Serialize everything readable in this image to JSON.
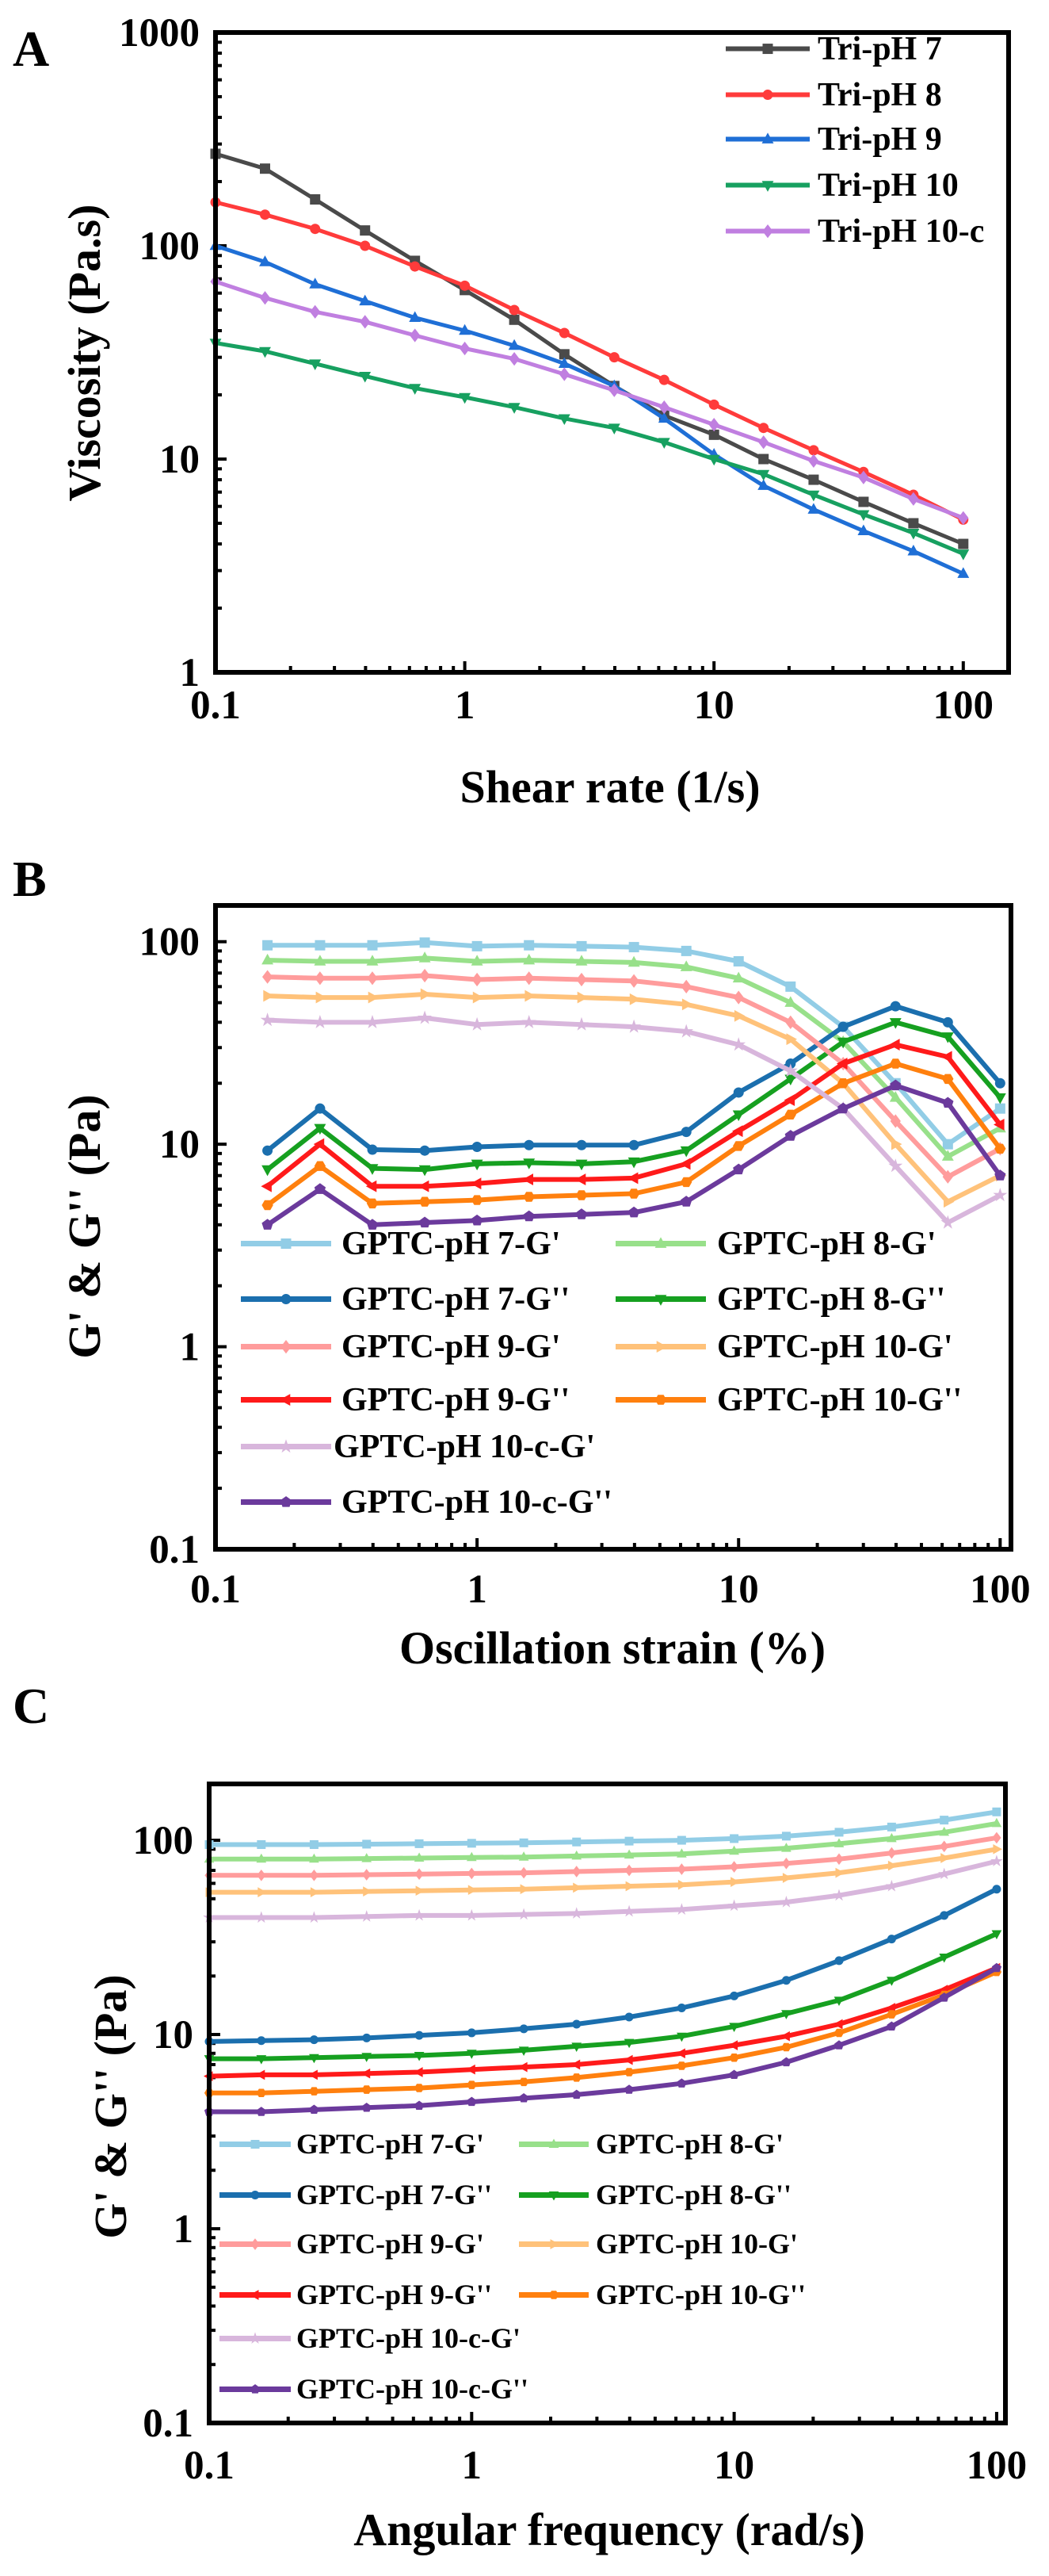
{
  "chart_data": [
    {
      "panel": "A",
      "type": "line",
      "xscale": "log",
      "yscale": "log",
      "xlabel": "Shear rate (1/s)",
      "ylabel": "Viscosity (Pa.s)",
      "xlim": [
        0.1,
        152
      ],
      "ylim": [
        1,
        1000
      ],
      "xticks": [
        {
          "v": 0.1,
          "label": "0.1"
        },
        {
          "v": 1,
          "label": "1"
        },
        {
          "v": 10,
          "label": "10"
        },
        {
          "v": 100,
          "label": "100"
        }
      ],
      "yticks": [
        {
          "v": 1,
          "label": "1"
        },
        {
          "v": 10,
          "label": "10"
        },
        {
          "v": 100,
          "label": "100"
        },
        {
          "v": 1000,
          "label": "1000"
        }
      ],
      "legend_placement": "top-right",
      "grid": false,
      "x": [
        0.1,
        0.158,
        0.251,
        0.398,
        0.631,
        1,
        1.58,
        2.51,
        3.98,
        6.31,
        10,
        15.8,
        25.1,
        39.8,
        63.1,
        100
      ],
      "series": [
        {
          "name": "Tri-pH 7",
          "color": "#4a4a4a",
          "marker": "square",
          "values": [
            270,
            230,
            165,
            118,
            85,
            62,
            45,
            31,
            22,
            16,
            13,
            10,
            8,
            6.3,
            5,
            4
          ]
        },
        {
          "name": "Tri-pH 8",
          "color": "#ff3b3b",
          "marker": "circle",
          "values": [
            160,
            140,
            120,
            100,
            80,
            65,
            50,
            39,
            30,
            23.5,
            18,
            14,
            11,
            8.7,
            6.8,
            5.2
          ]
        },
        {
          "name": "Tri-pH 9",
          "color": "#1f6fd6",
          "marker": "triangle-up",
          "values": [
            100,
            84,
            66,
            55,
            46,
            40,
            34,
            28,
            22,
            15.5,
            10.5,
            7.5,
            5.8,
            4.6,
            3.7,
            2.9
          ]
        },
        {
          "name": "Tri-pH 10",
          "color": "#17a060",
          "marker": "triangle-down",
          "values": [
            35,
            32,
            28,
            24.5,
            21.5,
            19.5,
            17.5,
            15.5,
            14,
            12,
            10,
            8.5,
            6.8,
            5.5,
            4.5,
            3.6
          ]
        },
        {
          "name": "Tri-pH 10-c",
          "color": "#c07fe0",
          "marker": "diamond",
          "values": [
            68,
            57,
            49,
            44,
            38,
            33,
            29.5,
            25,
            21,
            17.5,
            14.5,
            12,
            9.8,
            8.2,
            6.5,
            5.3
          ]
        }
      ]
    },
    {
      "panel": "B",
      "type": "line",
      "xscale": "log",
      "yscale": "log",
      "xlabel": "Oscillation strain (%)",
      "ylabel": "G' & G'' (Pa)",
      "xlim": [
        0.1,
        110
      ],
      "ylim": [
        0.1,
        151
      ],
      "xticks": [
        {
          "v": 0.1,
          "label": "0.1"
        },
        {
          "v": 1,
          "label": "1"
        },
        {
          "v": 10,
          "label": "10"
        },
        {
          "v": 100,
          "label": "100"
        }
      ],
      "yticks": [
        {
          "v": 0.1,
          "label": "0.1"
        },
        {
          "v": 1,
          "label": "1"
        },
        {
          "v": 10,
          "label": "10"
        },
        {
          "v": 100,
          "label": "100"
        }
      ],
      "legend_placement": "bottom-left",
      "grid": false,
      "x": [
        0.158,
        0.251,
        0.398,
        0.631,
        1,
        1.58,
        2.51,
        3.98,
        6.31,
        10,
        15.8,
        25.1,
        39.8,
        63.1,
        100
      ],
      "series": [
        {
          "name": "GPTC-pH 7-G'",
          "color": "#92cde6",
          "marker": "square",
          "values": [
            96,
            96,
            96,
            99,
            95,
            96,
            95,
            94,
            90,
            80,
            60,
            38,
            20,
            10,
            15
          ]
        },
        {
          "name": "GPTC-pH 8-G'",
          "color": "#98e08a",
          "marker": "triangle-up",
          "values": [
            81,
            80,
            80,
            83,
            80,
            81,
            80,
            79,
            75,
            66,
            50,
            32,
            17,
            8.7,
            12
          ]
        },
        {
          "name": "GPTC-pH 7-G''",
          "color": "#1b6fae",
          "marker": "circle",
          "values": [
            9.3,
            15,
            9.4,
            9.3,
            9.7,
            9.9,
            9.9,
            9.9,
            11.5,
            18,
            25,
            38,
            48,
            40,
            20
          ]
        },
        {
          "name": "GPTC-pH 8-G''",
          "color": "#16a020",
          "marker": "triangle-down",
          "values": [
            7.5,
            12,
            7.6,
            7.5,
            8,
            8.1,
            8,
            8.2,
            9.3,
            14,
            21,
            32,
            40,
            34,
            17
          ]
        },
        {
          "name": "GPTC-pH 9-G'",
          "color": "#ff9c9c",
          "marker": "diamond",
          "values": [
            67,
            66,
            66,
            68,
            65,
            66,
            65,
            64,
            60,
            53,
            40,
            25,
            13,
            6.9,
            9.5
          ]
        },
        {
          "name": "GPTC-pH 10-G'",
          "color": "#ffc27a",
          "marker": "triangle-right",
          "values": [
            54,
            53,
            53,
            55,
            53,
            54,
            53,
            52,
            49,
            43,
            33,
            20,
            10,
            5.2,
            7
          ]
        },
        {
          "name": "GPTC-pH 9-G''",
          "color": "#ff1a1a",
          "marker": "triangle-left",
          "values": [
            6.2,
            10,
            6.2,
            6.2,
            6.4,
            6.7,
            6.7,
            6.8,
            8,
            11.6,
            16.5,
            25,
            31,
            27,
            12.5
          ]
        },
        {
          "name": "GPTC-pH 10-G''",
          "color": "#ff800e",
          "marker": "hexagon",
          "values": [
            5,
            7.8,
            5.1,
            5.2,
            5.3,
            5.5,
            5.6,
            5.7,
            6.5,
            9.8,
            14,
            20,
            25,
            21,
            9.5
          ]
        },
        {
          "name": "GPTC-pH 10-c-G'",
          "color": "#d8b6dc",
          "marker": "star",
          "values": [
            41,
            40,
            40,
            42,
            39,
            40,
            39,
            38,
            36,
            31,
            23,
            15,
            7.8,
            4.1,
            5.6
          ]
        },
        {
          "name": "GPTC-pH 10-c-G''",
          "color": "#6b3a9c",
          "marker": "pentagon",
          "values": [
            4,
            6,
            4,
            4.1,
            4.2,
            4.4,
            4.5,
            4.6,
            5.2,
            7.5,
            11,
            15,
            19.5,
            16,
            7
          ]
        }
      ]
    },
    {
      "panel": "C",
      "type": "line",
      "xscale": "log",
      "yscale": "log",
      "xlabel": "Angular frequency (rad/s)",
      "ylabel": "G' & G'' (Pa)",
      "xlim": [
        0.1,
        108
      ],
      "ylim": [
        0.1,
        195
      ],
      "xticks": [
        {
          "v": 0.1,
          "label": "0.1"
        },
        {
          "v": 1,
          "label": "1"
        },
        {
          "v": 10,
          "label": "10"
        },
        {
          "v": 100,
          "label": "100"
        }
      ],
      "yticks": [
        {
          "v": 0.1,
          "label": "0.1"
        },
        {
          "v": 1,
          "label": "1"
        },
        {
          "v": 10,
          "label": "10"
        },
        {
          "v": 100,
          "label": "100"
        }
      ],
      "legend_placement": "bottom-left",
      "grid": false,
      "x": [
        0.1,
        0.158,
        0.251,
        0.398,
        0.631,
        1,
        1.58,
        2.51,
        3.98,
        6.31,
        10,
        15.8,
        25.1,
        39.8,
        63.1,
        100
      ],
      "series": [
        {
          "name": "GPTC-pH 7-G'",
          "color": "#92cde6",
          "marker": "square",
          "values": [
            95,
            95,
            95,
            95.5,
            96,
            96.5,
            97,
            98,
            99,
            100,
            102,
            105,
            110,
            117,
            127,
            140
          ]
        },
        {
          "name": "GPTC-pH 8-G'",
          "color": "#98e08a",
          "marker": "triangle-up",
          "values": [
            80,
            80,
            80,
            80.5,
            81,
            81.5,
            82,
            83,
            84,
            85,
            88,
            91,
            96,
            102,
            110,
            122
          ]
        },
        {
          "name": "GPTC-pH 7-G''",
          "color": "#1b6fae",
          "marker": "circle",
          "values": [
            9.2,
            9.3,
            9.4,
            9.6,
            9.9,
            10.2,
            10.7,
            11.3,
            12.3,
            13.7,
            15.8,
            19,
            24,
            31,
            41,
            56
          ]
        },
        {
          "name": "GPTC-pH 8-G''",
          "color": "#16a020",
          "marker": "triangle-down",
          "values": [
            7.5,
            7.5,
            7.6,
            7.7,
            7.8,
            8.0,
            8.3,
            8.7,
            9.1,
            9.8,
            11,
            12.8,
            15,
            19,
            25,
            33
          ]
        },
        {
          "name": "GPTC-pH 9-G'",
          "color": "#ff9c9c",
          "marker": "diamond",
          "values": [
            66,
            66,
            66,
            66.5,
            67,
            67.5,
            68,
            69,
            70,
            71,
            73,
            76,
            80,
            86,
            93,
            103
          ]
        },
        {
          "name": "GPTC-pH 10-G'",
          "color": "#ffc27a",
          "marker": "triangle-right",
          "values": [
            54,
            54,
            54,
            54.5,
            55,
            55.5,
            56,
            57,
            58,
            59,
            61,
            64,
            68,
            74,
            81,
            90
          ]
        },
        {
          "name": "GPTC-pH 9-G''",
          "color": "#ff1a1a",
          "marker": "triangle-left",
          "values": [
            6.1,
            6.2,
            6.2,
            6.3,
            6.4,
            6.6,
            6.8,
            7.0,
            7.4,
            8.0,
            8.8,
            9.8,
            11.3,
            13.7,
            17,
            22
          ]
        },
        {
          "name": "GPTC-pH 10-G''",
          "color": "#ff800e",
          "marker": "hexagon",
          "values": [
            5.0,
            5.0,
            5.1,
            5.2,
            5.3,
            5.5,
            5.7,
            6.0,
            6.4,
            6.9,
            7.6,
            8.6,
            10.2,
            12.7,
            16,
            21
          ]
        },
        {
          "name": "GPTC-pH 10-c-G'",
          "color": "#d8b6dc",
          "marker": "star",
          "values": [
            40,
            40,
            40,
            40.5,
            41,
            41,
            41.5,
            42,
            43,
            44,
            46,
            48,
            52,
            58,
            67,
            78
          ]
        },
        {
          "name": "GPTC-pH 10-c-G''",
          "color": "#6b3a9c",
          "marker": "pentagon",
          "values": [
            4.0,
            4.0,
            4.1,
            4.2,
            4.3,
            4.5,
            4.7,
            4.9,
            5.2,
            5.6,
            6.2,
            7.2,
            8.8,
            11,
            15.5,
            22
          ]
        }
      ]
    }
  ]
}
